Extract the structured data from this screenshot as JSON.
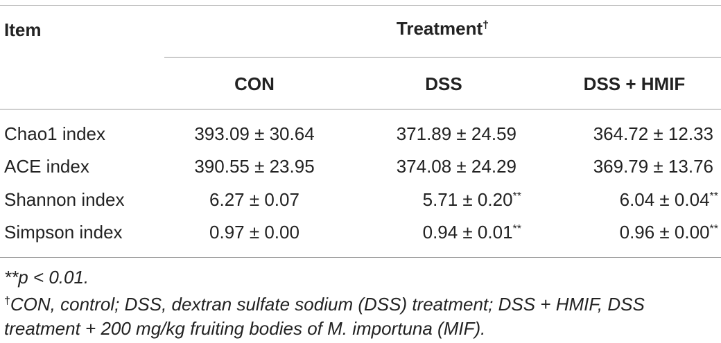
{
  "table": {
    "header": {
      "item": "Item",
      "group": "Treatment",
      "group_mark": "†",
      "columns": [
        "CON",
        "DSS",
        "DSS + HMIF"
      ]
    },
    "rows": [
      {
        "label": "Chao1 index",
        "values": [
          "393.09 ± 30.64",
          "371.89 ± 24.59",
          "364.72 ± 12.33"
        ],
        "marks": [
          "",
          "",
          ""
        ]
      },
      {
        "label": "ACE index",
        "values": [
          "390.55 ± 23.95",
          "374.08 ± 24.29",
          "369.79 ± 13.76"
        ],
        "marks": [
          "",
          "",
          ""
        ]
      },
      {
        "label": "Shannon index",
        "values": [
          "6.27 ± 0.07",
          "5.71 ± 0.20",
          "6.04 ± 0.04"
        ],
        "marks": [
          "",
          "**",
          "**"
        ]
      },
      {
        "label": "Simpson index",
        "values": [
          "0.97 ± 0.00",
          "0.94 ± 0.01",
          "0.96 ± 0.00"
        ],
        "marks": [
          "",
          "**",
          "**"
        ]
      }
    ]
  },
  "footnotes": {
    "significance": "**p < 0.01.",
    "dagger_mark": "†",
    "definition_line1": "CON, control; DSS, dextran sulfate sodium (DSS) treatment; DSS + HMIF, DSS",
    "definition_line2": "treatment + 200 mg/kg fruiting bodies of M. importuna (MIF)."
  }
}
